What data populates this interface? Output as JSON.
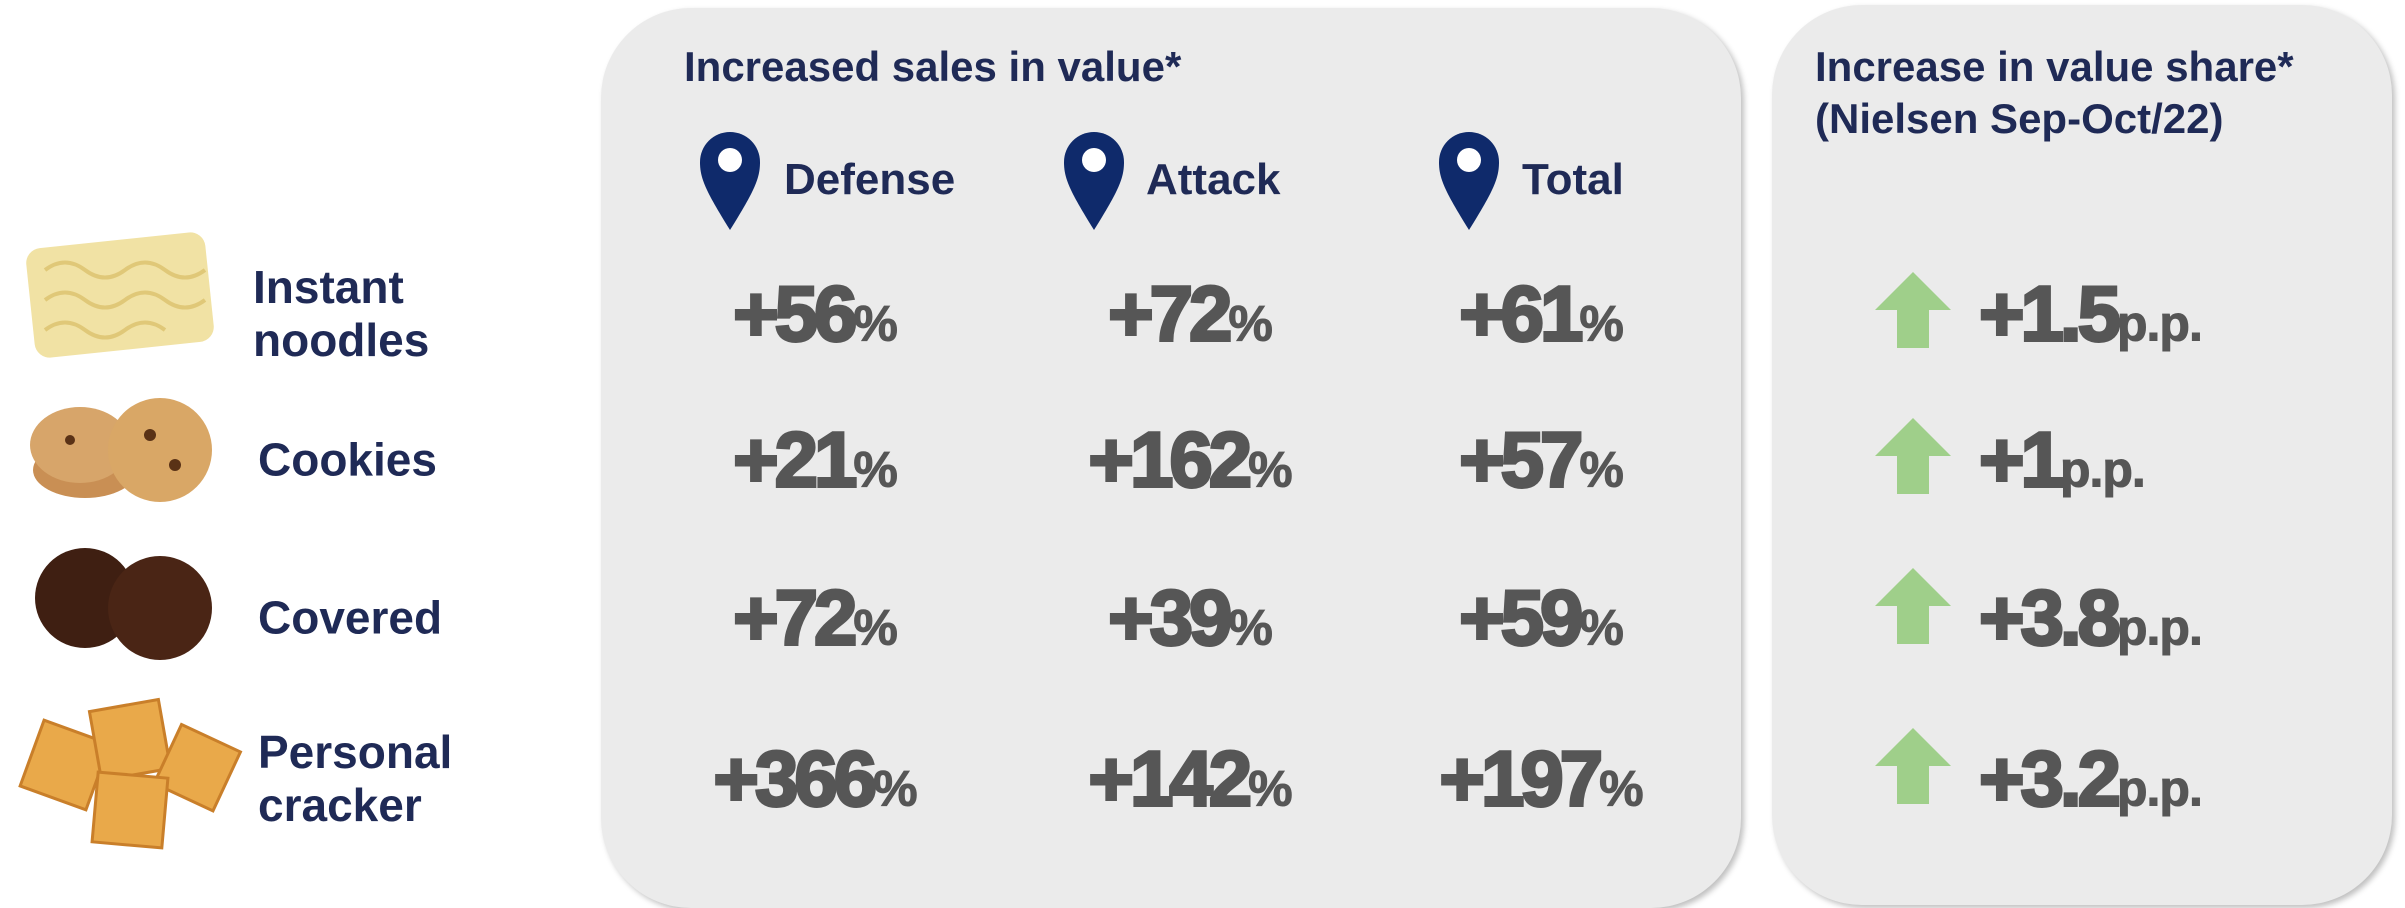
{
  "sales_panel": {
    "title": "Increased sales in value*",
    "columns": [
      "Defense",
      "Attack",
      "Total"
    ]
  },
  "share_panel": {
    "title": "Increase in value share*",
    "subtitle": "(Nielsen Sep-Oct/22)"
  },
  "rows": [
    {
      "label": "Instant noodles",
      "sales": [
        {
          "value": "+56",
          "unit": "%"
        },
        {
          "value": "+72",
          "unit": "%"
        },
        {
          "value": "+61",
          "unit": "%"
        }
      ],
      "share": {
        "value": "+1.5",
        "unit": "p.p."
      }
    },
    {
      "label": "Cookies",
      "sales": [
        {
          "value": "+21",
          "unit": "%"
        },
        {
          "value": "+162",
          "unit": "%"
        },
        {
          "value": "+57",
          "unit": "%"
        }
      ],
      "share": {
        "value": "+1",
        "unit": "p.p."
      }
    },
    {
      "label": "Covered",
      "sales": [
        {
          "value": "+72",
          "unit": "%"
        },
        {
          "value": "+39",
          "unit": "%"
        },
        {
          "value": "+59",
          "unit": "%"
        }
      ],
      "share": {
        "value": "+3.8",
        "unit": "p.p."
      }
    },
    {
      "label": "Personal cracker",
      "sales": [
        {
          "value": "+366",
          "unit": "%"
        },
        {
          "value": "+142",
          "unit": "%"
        },
        {
          "value": "+197",
          "unit": "%"
        }
      ],
      "share": {
        "value": "+3.2",
        "unit": "p.p."
      }
    }
  ]
}
